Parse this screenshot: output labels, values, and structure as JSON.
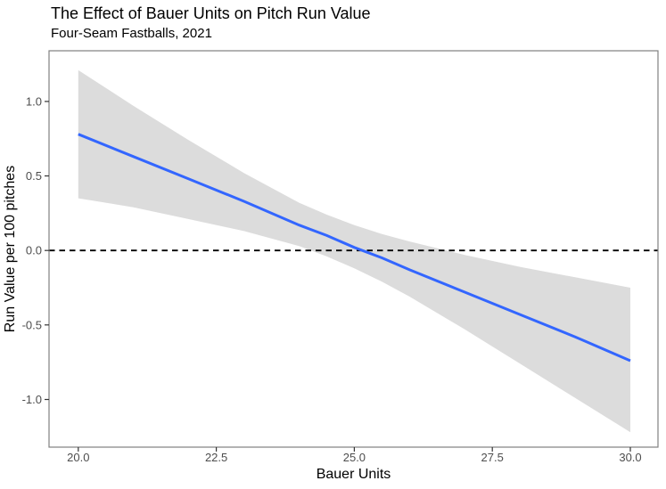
{
  "chart_data": {
    "type": "line",
    "title": "The Effect of Bauer Units on Pitch Run Value",
    "subtitle": "Four-Seam Fastballs, 2021",
    "xlabel": "Bauer Units",
    "ylabel": "Run Value per 100 pitches",
    "grid": false,
    "legend_position": "none",
    "xlim": [
      19.47,
      30.5
    ],
    "ylim": [
      -1.32,
      1.34
    ],
    "x_ticks": {
      "values": [
        20.0,
        22.5,
        25.0,
        27.5,
        30.0
      ],
      "labels": [
        "20.0",
        "22.5",
        "25.0",
        "27.5",
        "30.0"
      ]
    },
    "y_ticks": {
      "values": [
        1.0,
        0.5,
        0.0,
        -0.5,
        -1.0
      ],
      "labels": [
        "1.0",
        "0.5",
        "0.0",
        "-0.5",
        "-1.0"
      ]
    },
    "reference_line": {
      "y": 0,
      "style": "dashed",
      "color": "#000000"
    },
    "x": [
      20,
      21,
      22,
      23,
      24,
      24.5,
      25,
      25.5,
      26,
      27,
      28,
      29,
      30
    ],
    "series": [
      {
        "name": "linear-fit",
        "color": "#3366FF",
        "values": [
          0.78,
          0.63,
          0.48,
          0.33,
          0.17,
          0.1,
          0.02,
          -0.05,
          -0.13,
          -0.28,
          -0.43,
          -0.58,
          -0.74
        ]
      }
    ],
    "confidence_band": {
      "color": "#DCDCDC",
      "upper": [
        1.21,
        0.97,
        0.74,
        0.52,
        0.32,
        0.24,
        0.17,
        0.11,
        0.06,
        -0.03,
        -0.11,
        -0.18,
        -0.25
      ],
      "lower": [
        0.35,
        0.29,
        0.21,
        0.13,
        0.03,
        -0.04,
        -0.12,
        -0.21,
        -0.31,
        -0.53,
        -0.76,
        -0.99,
        -1.22
      ]
    }
  },
  "colors": {
    "background": "#FFFFFF",
    "panel_border": "#808080",
    "tick_mark": "#333333",
    "tick_label": "#4D4D4D",
    "title_text": "#000000",
    "smooth_line": "#3366FF",
    "band": "#DCDCDC",
    "zero_line": "#000000"
  }
}
